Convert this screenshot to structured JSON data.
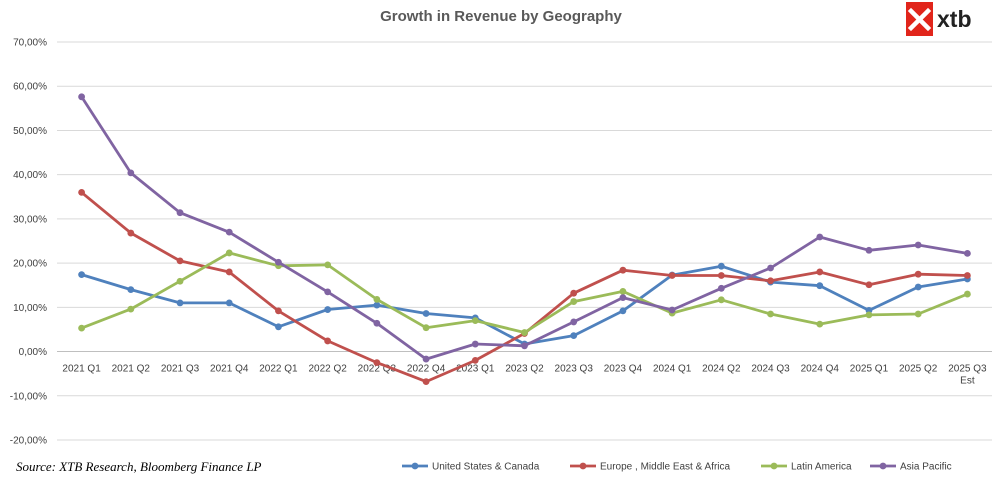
{
  "chart_data": {
    "type": "line",
    "title": "Growth in Revenue by Geography",
    "xlabel": "",
    "ylabel": "",
    "categories": [
      [
        "2021 Q1"
      ],
      [
        "2021 Q2"
      ],
      [
        "2021 Q3"
      ],
      [
        "2021 Q4"
      ],
      [
        "2022 Q1"
      ],
      [
        "2022 Q2"
      ],
      [
        "2022 Q3"
      ],
      [
        "2022 Q4"
      ],
      [
        "2023 Q1"
      ],
      [
        "2023 Q2"
      ],
      [
        "2023 Q3"
      ],
      [
        "2023 Q4"
      ],
      [
        "2024 Q1"
      ],
      [
        "2024 Q2"
      ],
      [
        "2024 Q3"
      ],
      [
        "2024 Q4"
      ],
      [
        "2025 Q1"
      ],
      [
        "2025 Q2"
      ],
      [
        "2025 Q3",
        "Est"
      ]
    ],
    "ylim": [
      -20,
      70
    ],
    "yticks": [
      -20,
      -10,
      0,
      10,
      20,
      30,
      40,
      50,
      60,
      70
    ],
    "ytick_labels": [
      "-20,00%",
      "-10,00%",
      "0,00%",
      "10,00%",
      "20,00%",
      "30,00%",
      "40,00%",
      "50,00%",
      "60,00%",
      "70,00%"
    ],
    "grid": true,
    "legend_position": "bottom-right",
    "series": [
      {
        "name": "United States & Canada",
        "color": "#4f81bd",
        "values": [
          17.4,
          14.0,
          11.0,
          11.0,
          5.6,
          9.5,
          10.5,
          8.6,
          7.6,
          1.7,
          3.6,
          9.2,
          17.3,
          19.3,
          15.7,
          14.9,
          9.3,
          14.6,
          16.4
        ]
      },
      {
        "name": "Europe , Middle East & Africa",
        "color": "#c0504d",
        "values": [
          36.0,
          26.8,
          20.5,
          18.0,
          9.2,
          2.4,
          -2.5,
          -6.8,
          -2.0,
          4.1,
          13.2,
          18.4,
          17.2,
          17.2,
          16.0,
          18.0,
          15.1,
          17.5,
          17.2
        ]
      },
      {
        "name": "Latin America",
        "color": "#9bbb59",
        "values": [
          5.3,
          9.6,
          15.9,
          22.3,
          19.4,
          19.6,
          11.8,
          5.4,
          7.0,
          4.3,
          11.3,
          13.6,
          8.7,
          11.7,
          8.5,
          6.2,
          8.3,
          8.5,
          13.0
        ]
      },
      {
        "name": "Asia Pacific",
        "color": "#8064a2",
        "values": [
          57.6,
          40.4,
          31.4,
          27.0,
          20.2,
          13.5,
          6.4,
          -1.7,
          1.7,
          1.3,
          6.7,
          12.2,
          9.4,
          14.3,
          18.9,
          25.9,
          22.9,
          24.1,
          22.2
        ]
      }
    ]
  },
  "source": "Source: XTB Research, Bloomberg Finance LP",
  "logo": {
    "text": "xtb",
    "color": "#e1251b"
  }
}
